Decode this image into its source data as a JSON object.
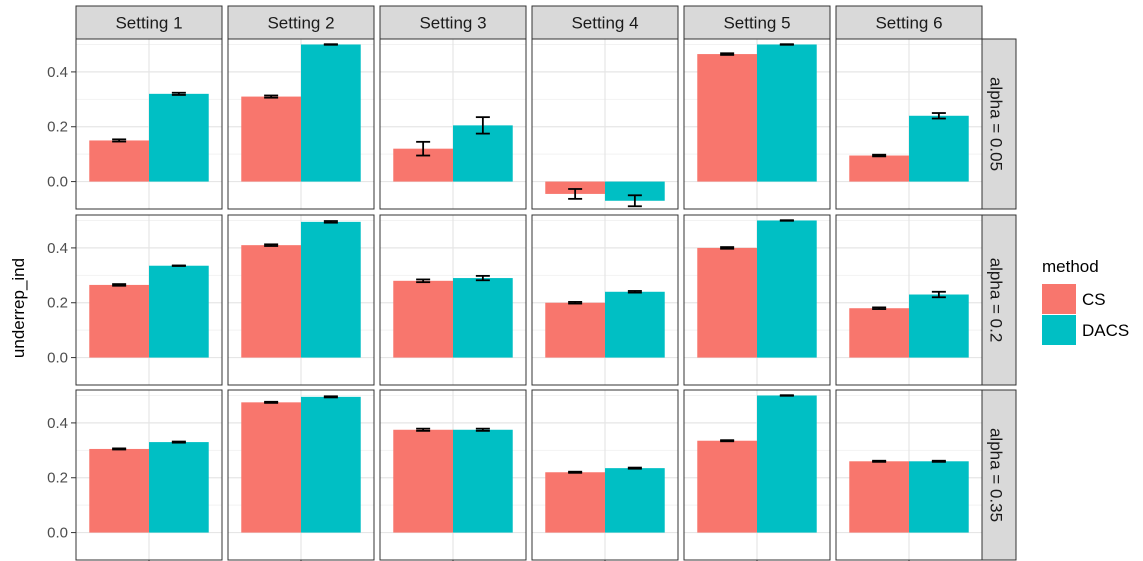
{
  "chart_data": {
    "type": "bar",
    "facet_columns": [
      "Setting 1",
      "Setting 2",
      "Setting 3",
      "Setting 4",
      "Setting 5",
      "Setting 6"
    ],
    "facet_rows": [
      "alpha = 0.05",
      "alpha = 0.2",
      "alpha = 0.35"
    ],
    "ylabel": "underrep_ind",
    "xlabel": "",
    "ylim": [
      -0.1,
      0.52
    ],
    "yticks": [
      0.0,
      0.2,
      0.4
    ],
    "ytick_labels": [
      "0.0",
      "0.2",
      "0.4"
    ],
    "grid": true,
    "legend": {
      "title": "method",
      "position": "right",
      "entries": [
        "CS",
        "DACS"
      ]
    },
    "series": [
      {
        "name": "CS",
        "color": "#F8766D",
        "values": [
          [
            0.15,
            0.31,
            0.12,
            -0.045,
            0.465,
            0.095
          ],
          [
            0.265,
            0.41,
            0.28,
            0.2,
            0.4,
            0.18
          ],
          [
            0.305,
            0.475,
            0.375,
            0.22,
            0.335,
            0.26
          ]
        ],
        "errors": [
          [
            0.004,
            0.004,
            0.025,
            0.018,
            0.003,
            0.003
          ],
          [
            0.003,
            0.003,
            0.005,
            0.003,
            0.003,
            0.003
          ],
          [
            0.002,
            0.002,
            0.004,
            0.002,
            0.002,
            0.002
          ]
        ]
      },
      {
        "name": "DACS",
        "color": "#00BFC4",
        "values": [
          [
            0.32,
            0.5,
            0.205,
            -0.07,
            0.5,
            0.24
          ],
          [
            0.335,
            0.495,
            0.29,
            0.24,
            0.5,
            0.23
          ],
          [
            0.33,
            0.495,
            0.375,
            0.235,
            0.5,
            0.26
          ]
        ],
        "errors": [
          [
            0.004,
            0.001,
            0.03,
            0.02,
            0.001,
            0.01
          ],
          [
            0.001,
            0.003,
            0.008,
            0.003,
            0.001,
            0.01
          ],
          [
            0.002,
            0.002,
            0.004,
            0.002,
            0.001,
            0.002
          ]
        ]
      }
    ]
  }
}
